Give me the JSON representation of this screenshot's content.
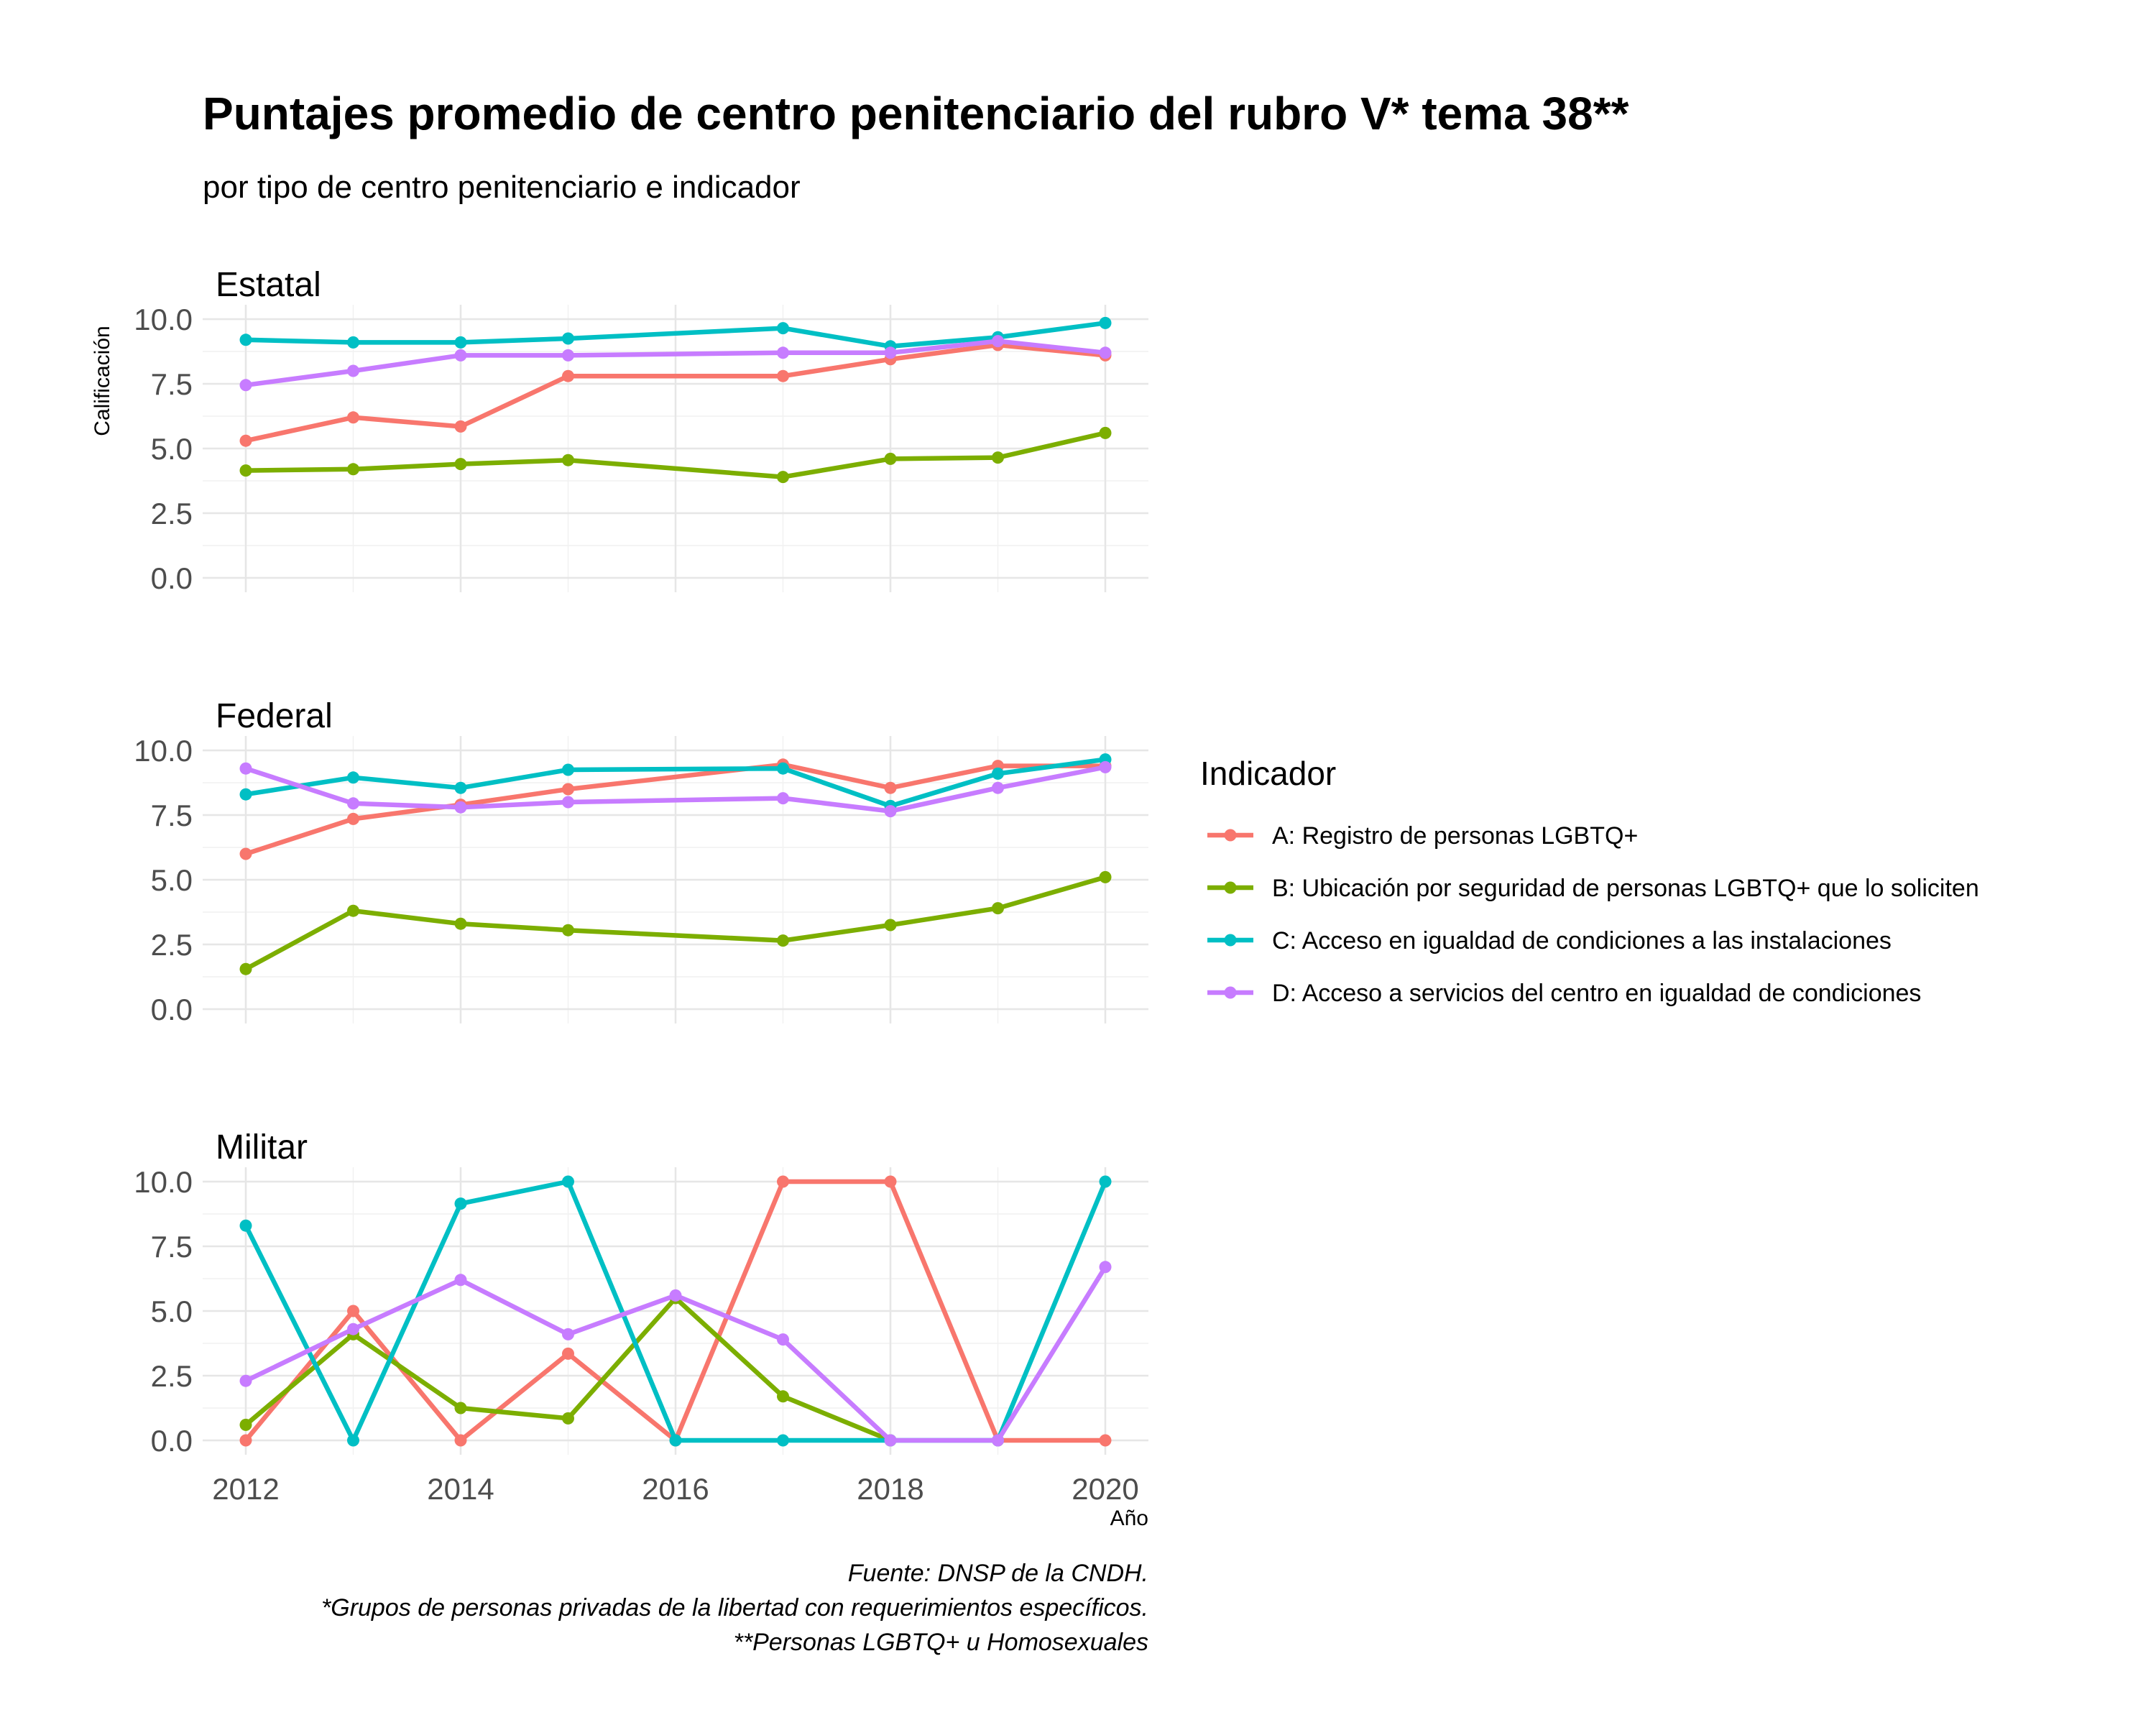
{
  "title": "Puntajes promedio de centro penitenciario del rubro V* tema 38**",
  "subtitle": "por tipo de centro penitenciario e indicador",
  "caption": [
    "Fuente: DNSP de la CNDH.",
    "*Grupos de personas privadas de la libertad con requerimientos específicos.",
    "**Personas LGBTQ+ u Homosexuales"
  ],
  "chart_data": {
    "type": "line",
    "xlabel": "Año",
    "ylabel": "Calificación",
    "x": [
      2012,
      2013,
      2014,
      2015,
      2016,
      2017,
      2018,
      2019,
      2020
    ],
    "xticks": [
      2012,
      2014,
      2016,
      2018,
      2020
    ],
    "xlim": [
      2012,
      2020
    ],
    "ylim": [
      0,
      10
    ],
    "yticks": [
      "0.0",
      "2.5",
      "5.0",
      "7.5",
      "10.0"
    ],
    "grid": true,
    "legend": {
      "title": "Indicador",
      "placement": "right",
      "entries": [
        {
          "key": "A",
          "label": "A: Registro de personas LGBTQ+",
          "color": "#F8766D"
        },
        {
          "key": "B",
          "label": "B: Ubicación por seguridad de personas LGBTQ+ que lo soliciten",
          "color": "#7CAE00"
        },
        {
          "key": "C",
          "label": "C: Acceso en igualdad de condiciones a las instalaciones",
          "color": "#00BFC4"
        },
        {
          "key": "D",
          "label": "D: Acceso a servicios del centro en igualdad de condiciones",
          "color": "#C77CFF"
        }
      ]
    },
    "panels": [
      {
        "name": "Estatal",
        "series": [
          {
            "key": "A",
            "x": [
              2012,
              2013,
              2014,
              2015,
              2017,
              2018,
              2019,
              2020
            ],
            "values": [
              5.3,
              6.2,
              5.85,
              7.8,
              7.8,
              8.45,
              9.0,
              8.6
            ]
          },
          {
            "key": "B",
            "x": [
              2012,
              2013,
              2014,
              2015,
              2017,
              2018,
              2019,
              2020
            ],
            "values": [
              4.15,
              4.2,
              4.4,
              4.55,
              3.9,
              4.6,
              4.65,
              5.6
            ]
          },
          {
            "key": "C",
            "x": [
              2012,
              2013,
              2014,
              2015,
              2017,
              2018,
              2019,
              2020
            ],
            "values": [
              9.2,
              9.1,
              9.1,
              9.25,
              9.65,
              8.95,
              9.3,
              9.85
            ]
          },
          {
            "key": "D",
            "x": [
              2012,
              2013,
              2014,
              2015,
              2017,
              2018,
              2019,
              2020
            ],
            "values": [
              7.45,
              8.0,
              8.6,
              8.6,
              8.7,
              8.7,
              9.15,
              8.7
            ]
          }
        ]
      },
      {
        "name": "Federal",
        "series": [
          {
            "key": "A",
            "x": [
              2012,
              2013,
              2014,
              2015,
              2017,
              2018,
              2019,
              2020
            ],
            "values": [
              6.0,
              7.35,
              7.9,
              8.5,
              9.45,
              8.55,
              9.4,
              9.4
            ]
          },
          {
            "key": "B",
            "x": [
              2012,
              2013,
              2014,
              2015,
              2017,
              2018,
              2019,
              2020
            ],
            "values": [
              1.55,
              3.8,
              3.3,
              3.05,
              2.65,
              3.25,
              3.9,
              5.1
            ]
          },
          {
            "key": "C",
            "x": [
              2012,
              2013,
              2014,
              2015,
              2017,
              2018,
              2019,
              2020
            ],
            "values": [
              8.3,
              8.95,
              8.55,
              9.25,
              9.3,
              7.85,
              9.1,
              9.65
            ]
          },
          {
            "key": "D",
            "x": [
              2012,
              2013,
              2014,
              2015,
              2017,
              2018,
              2019,
              2020
            ],
            "values": [
              9.3,
              7.95,
              7.8,
              8.0,
              8.15,
              7.65,
              8.55,
              9.35
            ]
          }
        ]
      },
      {
        "name": "Militar",
        "series": [
          {
            "key": "A",
            "x": [
              2012,
              2013,
              2014,
              2015,
              2016,
              2017,
              2018,
              2019,
              2020
            ],
            "values": [
              0.0,
              5.0,
              0.0,
              3.35,
              0.0,
              10.0,
              10.0,
              0.0,
              0.0
            ]
          },
          {
            "key": "B",
            "x": [
              2012,
              2013,
              2014,
              2015,
              2016,
              2017,
              2018
            ],
            "values": [
              0.6,
              4.1,
              1.25,
              0.85,
              5.5,
              1.7,
              0.0
            ]
          },
          {
            "key": "C",
            "x": [
              2012,
              2013,
              2014,
              2015,
              2016,
              2017,
              2018,
              2019,
              2020
            ],
            "values": [
              8.3,
              0.0,
              9.15,
              10.0,
              0.0,
              0.0,
              0.0,
              0.0,
              10.0
            ]
          },
          {
            "key": "D",
            "x": [
              2012,
              2013,
              2014,
              2015,
              2016,
              2017,
              2018,
              2019,
              2020
            ],
            "values": [
              2.3,
              4.3,
              6.2,
              4.1,
              5.6,
              3.9,
              0.0,
              0.0,
              6.7
            ]
          }
        ]
      }
    ]
  }
}
